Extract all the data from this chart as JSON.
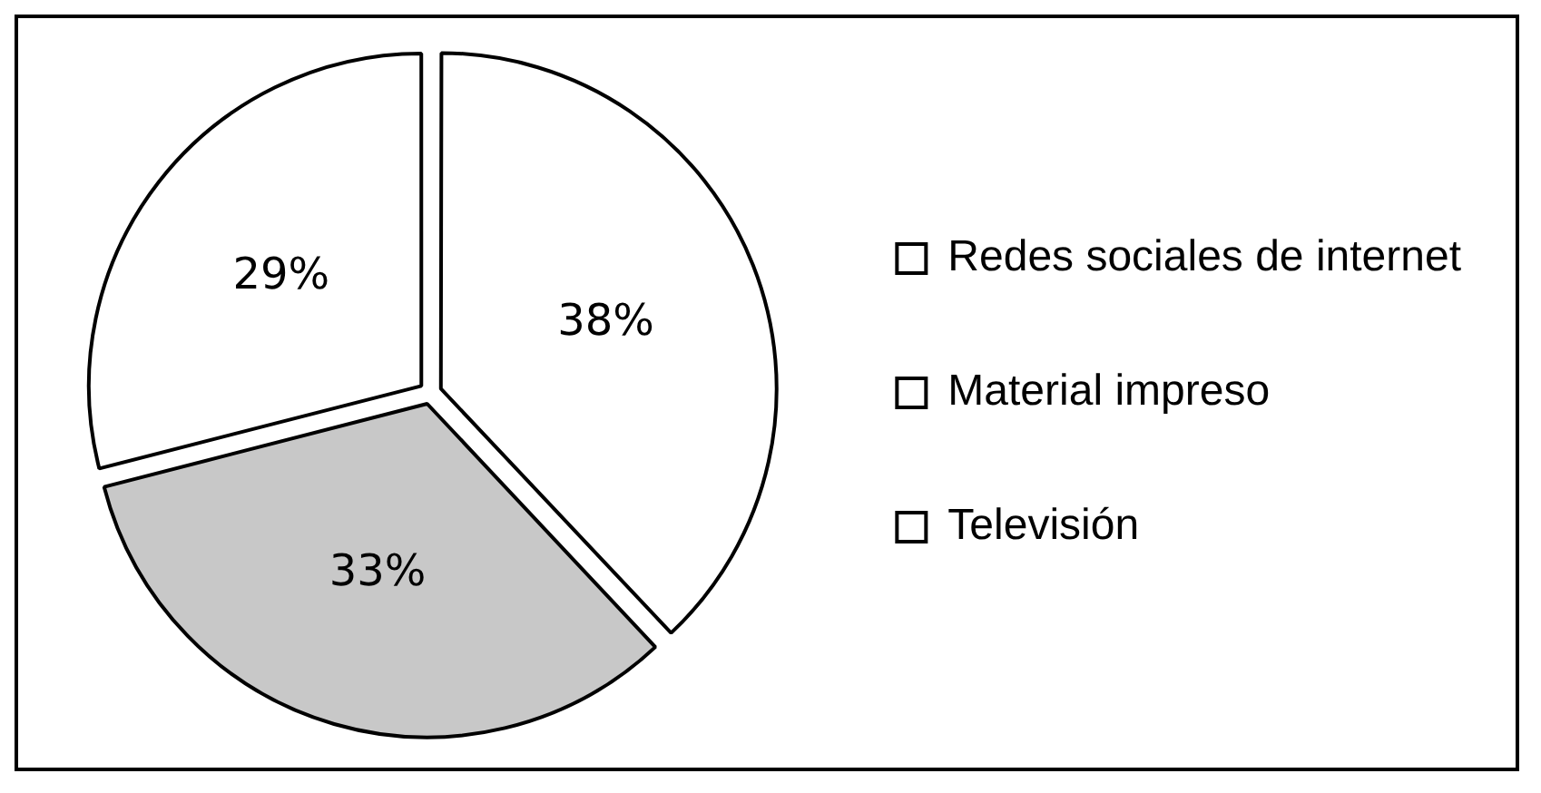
{
  "chart_data": {
    "type": "pie",
    "categories": [
      "Redes sociales de internet",
      "Material impreso",
      "Televisión"
    ],
    "values": [
      38,
      33,
      29
    ],
    "value_labels": [
      "38%",
      "33%",
      "29%"
    ],
    "colors": [
      "#ffffff",
      "#c8c8c8",
      "#ffffff"
    ],
    "legend": "right"
  }
}
